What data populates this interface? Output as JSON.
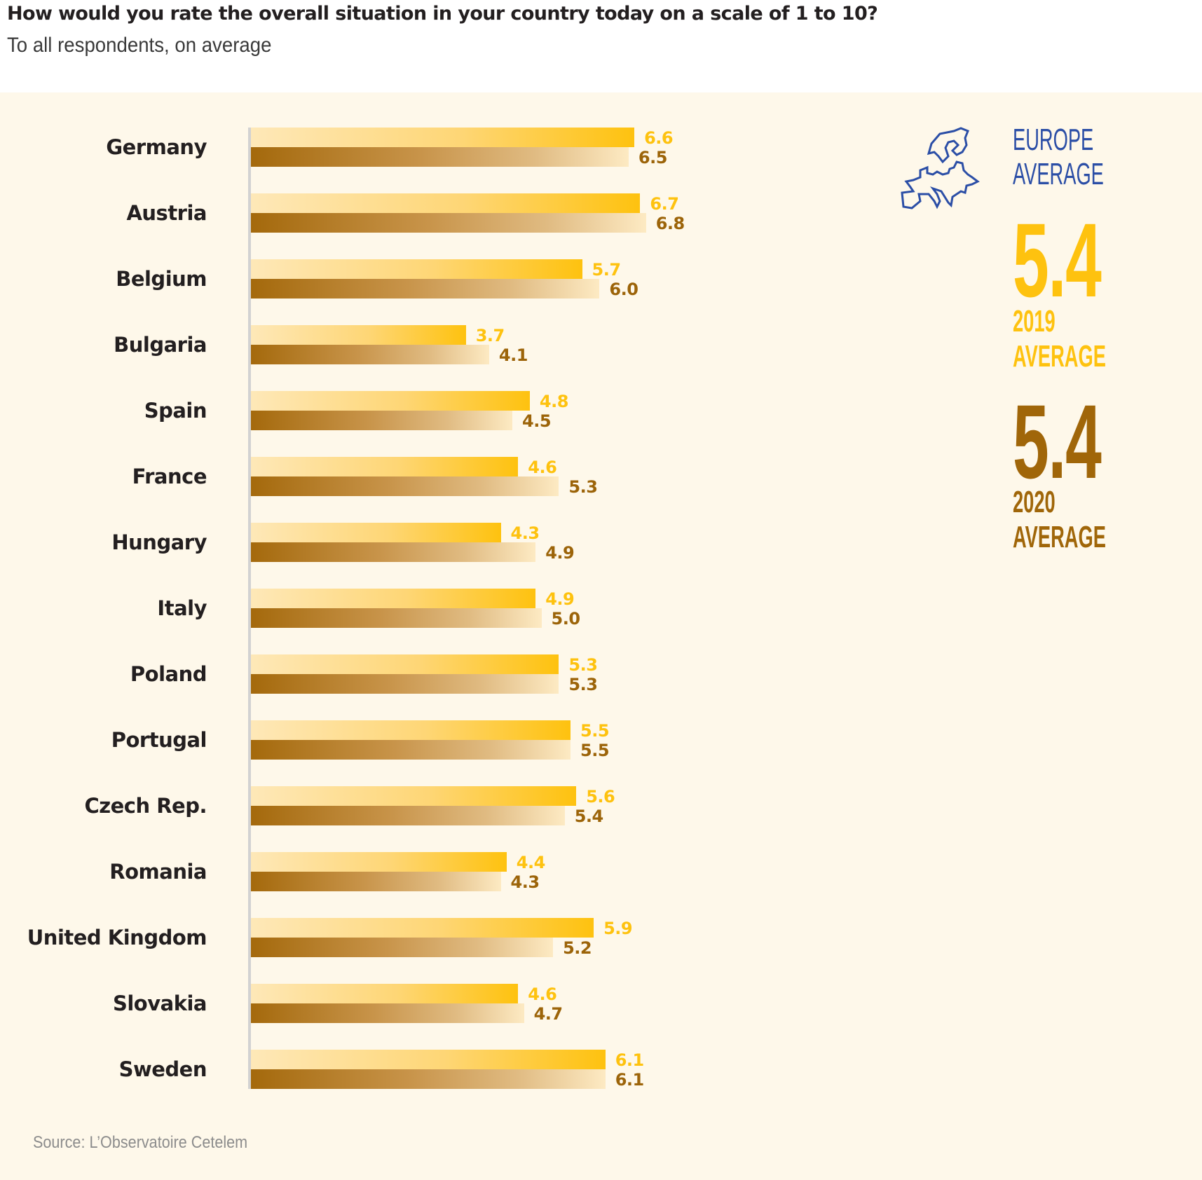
{
  "header": {
    "title": "How would you rate the overall situation in your country today on a scale of 1 to 10?",
    "subtitle": "To all respondents, on average"
  },
  "sidebar": {
    "icon": "europe-map-icon",
    "europe_label_line1": "EUROPE",
    "europe_label_line2": "AVERAGE",
    "avg_2019_value": "5.4",
    "avg_2019_line1": "2019",
    "avg_2019_line2": "AVERAGE",
    "avg_2020_value": "5.4",
    "avg_2020_line1": "2020",
    "avg_2020_line2": "AVERAGE"
  },
  "source": "Source: L’Observatoire Cetelem",
  "colors": {
    "series_2019": "#fec20f",
    "series_2020": "#a06609",
    "europe_blue": "#2b4ea6",
    "panel_background": "#fef8ea"
  },
  "chart_data": {
    "type": "bar",
    "orientation": "horizontal",
    "title": "How would you rate the overall situation in your country today on a scale of 1 to 10?",
    "subtitle": "To all respondents, on average",
    "xlabel": "",
    "ylabel": "",
    "xlim": [
      0,
      10
    ],
    "grid": false,
    "categories": [
      "Germany",
      "Austria",
      "Belgium",
      "Bulgaria",
      "Spain",
      "France",
      "Hungary",
      "Italy",
      "Poland",
      "Portugal",
      "Czech Rep.",
      "Romania",
      "United Kingdom",
      "Slovakia",
      "Sweden"
    ],
    "series": [
      {
        "name": "2019",
        "values": [
          6.6,
          6.7,
          5.7,
          3.7,
          4.8,
          4.6,
          4.3,
          4.9,
          5.3,
          5.5,
          5.6,
          4.4,
          5.9,
          4.6,
          6.1
        ],
        "labels": [
          "6.6",
          "6.7",
          "5.7",
          "3.7",
          "4.8",
          "4.6",
          "4.3",
          "4.9",
          "5.3",
          "5.5",
          "5.6",
          "4.4",
          "5.9",
          "4.6",
          "6.1"
        ]
      },
      {
        "name": "2020",
        "values": [
          6.5,
          6.8,
          6.0,
          4.1,
          4.5,
          5.3,
          4.9,
          5.0,
          5.3,
          5.5,
          5.4,
          4.3,
          5.2,
          4.7,
          6.1
        ],
        "labels": [
          "6.5",
          "6.8",
          "6.0",
          "4.1",
          "4.5",
          "5.3",
          "4.9",
          "5.0",
          "5.3",
          "5.5",
          "5.4",
          "4.3",
          "5.2",
          "4.7",
          "6.1"
        ]
      }
    ],
    "annotations": [
      "EUROPE AVERAGE",
      "5.4 2019 AVERAGE",
      "5.4 2020 AVERAGE"
    ]
  }
}
